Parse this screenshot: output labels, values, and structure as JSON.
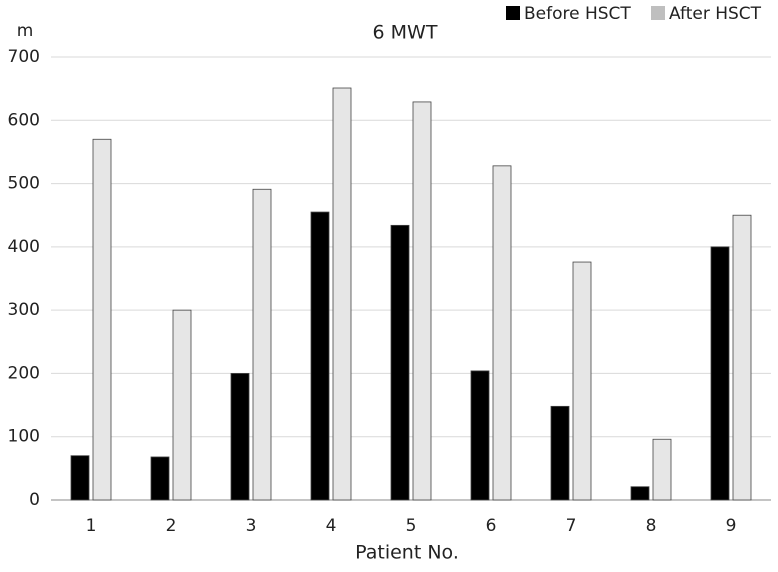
{
  "chart_data": {
    "type": "bar",
    "title": "6 MWT",
    "y_label": "m",
    "x_label": "Patient No.",
    "categories": [
      "1",
      "2",
      "3",
      "4",
      "5",
      "6",
      "7",
      "8",
      "9"
    ],
    "series": [
      {
        "name": "Before HSCT",
        "color": "#000000",
        "values": [
          70,
          68,
          200,
          455,
          434,
          204,
          148,
          21,
          400
        ]
      },
      {
        "name": "After HSCT",
        "color": "#e6e6e6",
        "values": [
          570,
          300,
          491,
          651,
          629,
          528,
          376,
          96,
          450
        ]
      }
    ],
    "ylim": [
      0,
      700
    ],
    "yticks": [
      0,
      100,
      200,
      300,
      400,
      500,
      600,
      700
    ],
    "grid": true,
    "legend": "top-right"
  }
}
